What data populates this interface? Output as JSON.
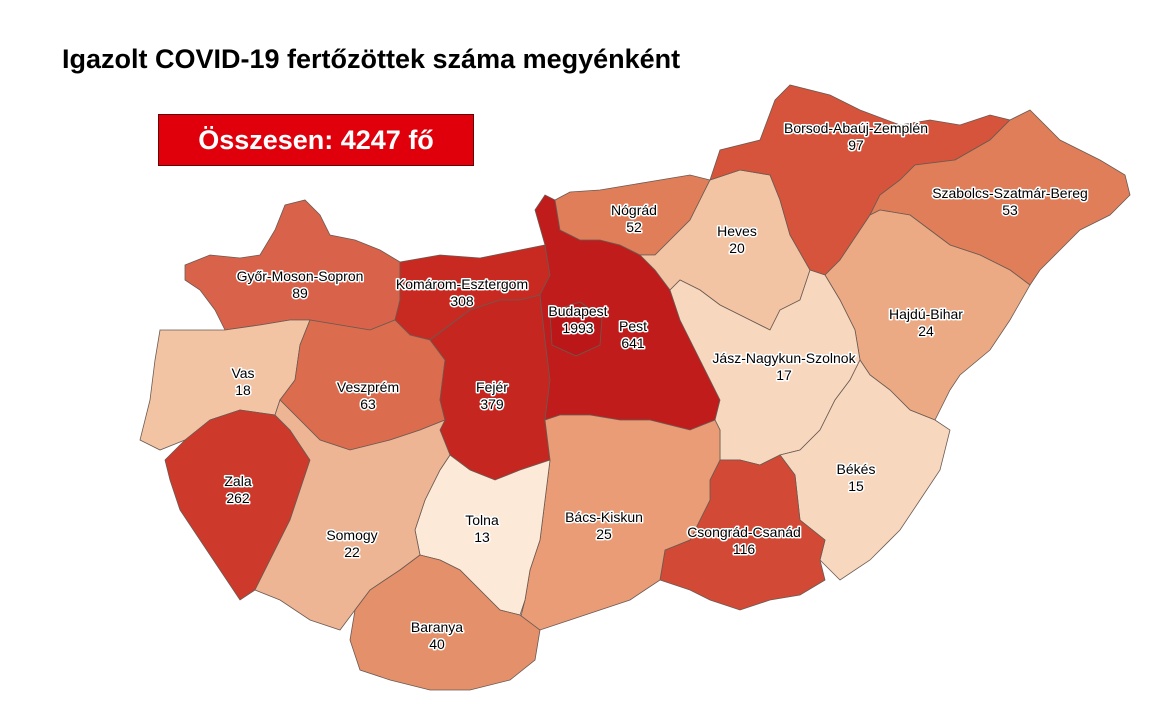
{
  "title": "Igazolt COVID-19 fertőzöttek száma megyénként",
  "total_label": "Összesen: 4247 fő",
  "colors": {
    "scale": [
      "#fde8d5",
      "#f7d6bc",
      "#f0bb98",
      "#e89a72",
      "#e07a55",
      "#d4543a",
      "#c8281f",
      "#c0181c"
    ],
    "total_box": "#e0000b"
  },
  "counties": [
    {
      "name": "Győr-Moson-Sopron",
      "value": "89",
      "color": "#d9634a"
    },
    {
      "name": "Komárom-Esztergom",
      "value": "308",
      "color": "#c82a22"
    },
    {
      "name": "Vas",
      "value": "18",
      "color": "#f2c4a4"
    },
    {
      "name": "Veszprém",
      "value": "63",
      "color": "#dc6c4e"
    },
    {
      "name": "Fejér",
      "value": "379",
      "color": "#c52620"
    },
    {
      "name": "Pest",
      "value": "641",
      "color": "#c01c1c"
    },
    {
      "name": "Budapest",
      "value": "1993",
      "color": "#bb1719"
    },
    {
      "name": "Nógrád",
      "value": "52",
      "color": "#e07e5a"
    },
    {
      "name": "Heves",
      "value": "20",
      "color": "#f2c4a4"
    },
    {
      "name": "Borsod-Abaúj-Zemplén",
      "value": "97",
      "color": "#d5543b"
    },
    {
      "name": "Szabolcs-Szatmár-Bereg",
      "value": "53",
      "color": "#e07e5a"
    },
    {
      "name": "Hajdú-Bihar",
      "value": "24",
      "color": "#ebaa84"
    },
    {
      "name": "Jász-Nagykun-Szolnok",
      "value": "17",
      "color": "#f7d8bf"
    },
    {
      "name": "Békés",
      "value": "15",
      "color": "#f7d8bf"
    },
    {
      "name": "Csongrád-Csanád",
      "value": "116",
      "color": "#d24a35"
    },
    {
      "name": "Bács-Kiskun",
      "value": "25",
      "color": "#e99c76"
    },
    {
      "name": "Tolna",
      "value": "13",
      "color": "#fde9d7"
    },
    {
      "name": "Zala",
      "value": "262",
      "color": "#cd3a2c"
    },
    {
      "name": "Somogy",
      "value": "22",
      "color": "#eeb594"
    },
    {
      "name": "Baranya",
      "value": "40",
      "color": "#e4906a"
    }
  ]
}
